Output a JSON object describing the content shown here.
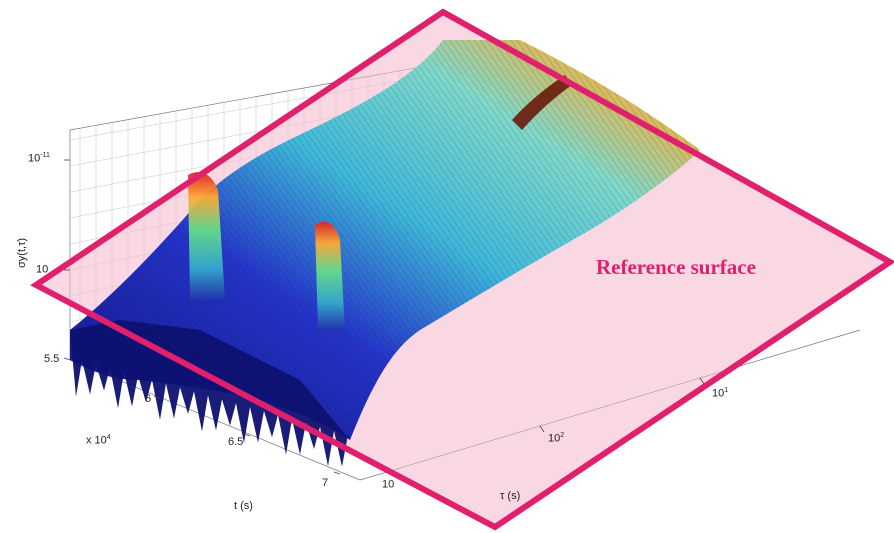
{
  "chart_data": {
    "type": "surface",
    "title": "",
    "zlabel": "σy(t,τ)",
    "xlabel": "t (s)",
    "ylabel": "τ (s)",
    "x_multiplier": "x 10",
    "x_multiplier_exp": "4",
    "x_ticks": [
      "5.5",
      "6",
      "6.5",
      "7"
    ],
    "tau_ticks": [
      {
        "base": "10",
        "exp": "1"
      },
      {
        "base": "10",
        "exp": "2"
      },
      {
        "base": "10",
        "exp": ""
      }
    ],
    "z_ticks": [
      {
        "base": "10",
        "exp": "-11"
      },
      {
        "base": "10",
        "exp": ""
      }
    ],
    "xlim": [
      55000,
      70000
    ],
    "tau_scale": "log",
    "z_scale": "log",
    "reference_plane_label": "Reference surface",
    "colors": {
      "low": "#1a1a9a",
      "mid": "#3fb8d8",
      "high": "#f6b13a",
      "peak": "#8a1a0a",
      "reference_plane": "#f4b6cc",
      "reference_outline": "#e0206c"
    },
    "colormap": "jet"
  }
}
